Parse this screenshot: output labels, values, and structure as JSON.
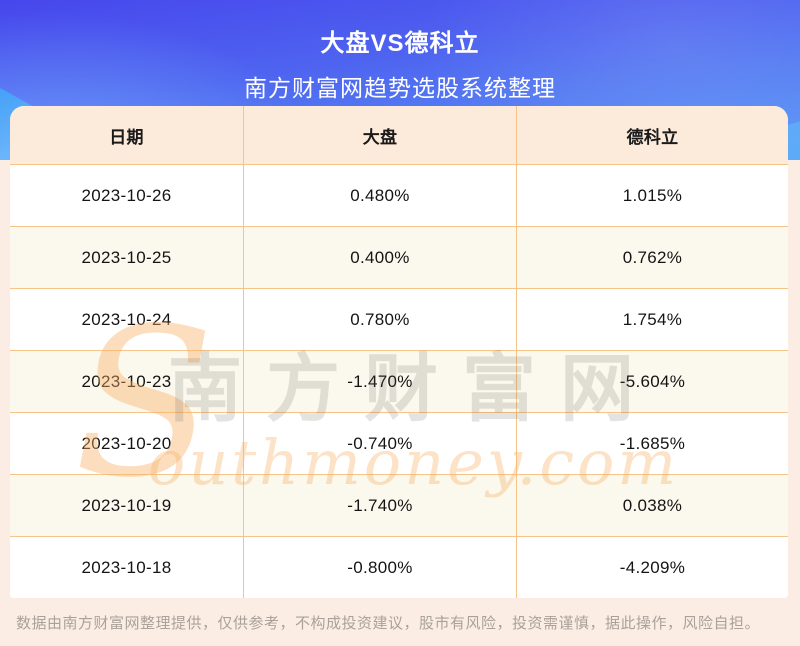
{
  "header": {
    "title": "大盘VS德科立",
    "subtitle": "南方财富网趋势选股系统整理"
  },
  "table": {
    "columns": [
      "日期",
      "大盘",
      "德科立"
    ],
    "rows": [
      [
        "2023-10-26",
        "0.480%",
        "1.015%"
      ],
      [
        "2023-10-25",
        "0.400%",
        "0.762%"
      ],
      [
        "2023-10-24",
        "0.780%",
        "1.754%"
      ],
      [
        "2023-10-23",
        "-1.470%",
        "-5.604%"
      ],
      [
        "2023-10-20",
        "-0.740%",
        "-1.685%"
      ],
      [
        "2023-10-19",
        "-1.740%",
        "0.038%"
      ],
      [
        "2023-10-18",
        "-0.800%",
        "-4.209%"
      ]
    ]
  },
  "watermark": {
    "s": "S",
    "cn": "南方财富网",
    "en": "outhmoney.com"
  },
  "footer": {
    "disclaimer": "数据由南方财富网整理提供，仅供参考，不构成投资建议，股市有风险，投资需谨慎，据此操作，风险自担。"
  },
  "colors": {
    "hero_gradient_top": "#4747ec",
    "hero_gradient_bottom": "#5b9cf5",
    "table_header_bg": "#fceada",
    "row_alt_bg": "#fbf8ee",
    "table_border": "#f6c488",
    "page_bg": "#fcede4",
    "table_text": "#141414",
    "footer_text": "#a9a29a",
    "title_text": "#ffffff"
  },
  "chart_data": {
    "type": "table",
    "title": "大盘VS德科立",
    "subtitle": "南方财富网趋势选股系统整理",
    "columns": [
      "日期",
      "大盘",
      "德科立"
    ],
    "rows": [
      [
        "2023-10-26",
        "0.480%",
        "1.015%"
      ],
      [
        "2023-10-25",
        "0.400%",
        "0.762%"
      ],
      [
        "2023-10-24",
        "0.780%",
        "1.754%"
      ],
      [
        "2023-10-23",
        "-1.470%",
        "-5.604%"
      ],
      [
        "2023-10-20",
        "-0.740%",
        "-1.685%"
      ],
      [
        "2023-10-19",
        "-1.740%",
        "0.038%"
      ],
      [
        "2023-10-18",
        "-0.800%",
        "-4.209%"
      ]
    ],
    "series": [
      {
        "name": "大盘",
        "unit": "%",
        "values": [
          0.48,
          0.4,
          0.78,
          -1.47,
          -0.74,
          -1.74,
          -0.8
        ]
      },
      {
        "name": "德科立",
        "unit": "%",
        "values": [
          1.015,
          0.762,
          1.754,
          -5.604,
          -1.685,
          0.038,
          -4.209
        ]
      }
    ],
    "x": [
      "2023-10-26",
      "2023-10-25",
      "2023-10-24",
      "2023-10-23",
      "2023-10-20",
      "2023-10-19",
      "2023-10-18"
    ]
  }
}
